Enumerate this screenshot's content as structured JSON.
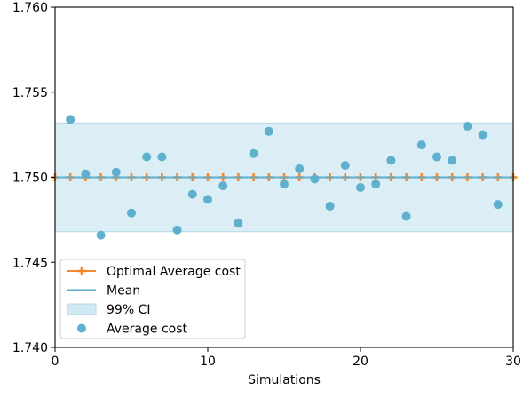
{
  "chart_data": {
    "type": "scatter",
    "title": "",
    "xlabel": "Simulations",
    "ylabel": "",
    "xlim": [
      0,
      30
    ],
    "ylim": [
      1.74,
      1.76
    ],
    "xticks": [
      0,
      10,
      20,
      30
    ],
    "xtick_labels": [
      "0",
      "10",
      "20",
      "30"
    ],
    "yticks": [
      1.74,
      1.745,
      1.75,
      1.755,
      1.76
    ],
    "ytick_labels": [
      "1.740",
      "1.745",
      "1.750",
      "1.755",
      "1.760"
    ],
    "grid": false,
    "legend_position": "lower-left",
    "colors": {
      "optimal": "#f0892f",
      "mean": "#5fb0cf",
      "ci_fill": "#cfe8f1",
      "points": "#5fb0cf"
    },
    "series": [
      {
        "name": "Optimal Average cost",
        "kind": "line-marker",
        "marker": "plus",
        "x": [
          0,
          1,
          2,
          3,
          4,
          5,
          6,
          7,
          8,
          9,
          10,
          11,
          12,
          13,
          14,
          15,
          16,
          17,
          18,
          19,
          20,
          21,
          22,
          23,
          24,
          25,
          26,
          27,
          28,
          29,
          30
        ],
        "y": [
          1.75,
          1.75,
          1.75,
          1.75,
          1.75,
          1.75,
          1.75,
          1.75,
          1.75,
          1.75,
          1.75,
          1.75,
          1.75,
          1.75,
          1.75,
          1.75,
          1.75,
          1.75,
          1.75,
          1.75,
          1.75,
          1.75,
          1.75,
          1.75,
          1.75,
          1.75,
          1.75,
          1.75,
          1.75,
          1.75,
          1.75
        ]
      },
      {
        "name": "Mean",
        "kind": "hline",
        "y": 1.75
      },
      {
        "name": "99% CI",
        "kind": "band",
        "y_low": 1.7468,
        "y_high": 1.7532
      },
      {
        "name": "Average cost",
        "kind": "scatter",
        "x": [
          1,
          2,
          3,
          4,
          5,
          6,
          7,
          8,
          9,
          10,
          11,
          12,
          13,
          14,
          15,
          16,
          17,
          18,
          19,
          20,
          21,
          22,
          23,
          24,
          25,
          26,
          27,
          28,
          29
        ],
        "y": [
          1.7534,
          1.7502,
          1.7466,
          1.7503,
          1.7479,
          1.7512,
          1.7512,
          1.7469,
          1.749,
          1.7487,
          1.7495,
          1.7473,
          1.7514,
          1.7527,
          1.7496,
          1.7505,
          1.7499,
          1.7483,
          1.7507,
          1.7494,
          1.7496,
          1.751,
          1.7477,
          1.7519,
          1.7512,
          1.751,
          1.753,
          1.7525,
          1.7484
        ]
      }
    ]
  }
}
